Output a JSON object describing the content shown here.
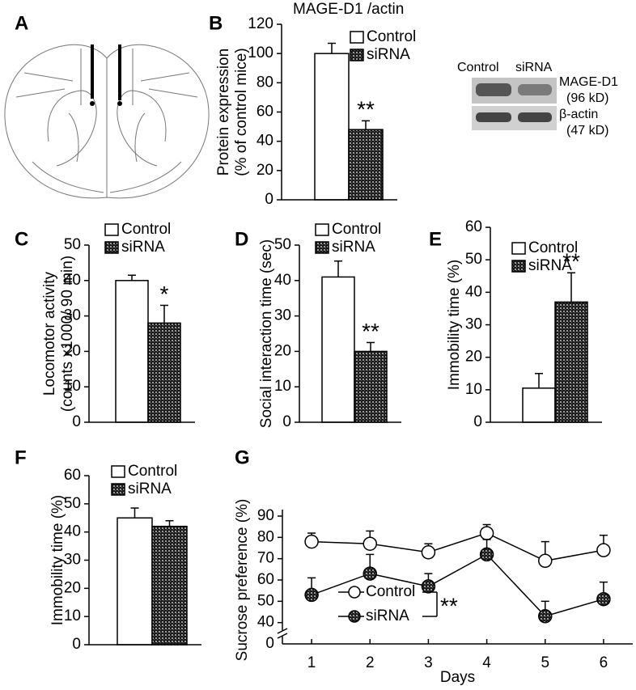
{
  "panel_a": {
    "label": "A"
  },
  "blot": {
    "lanes": [
      "Control",
      "siRNA"
    ],
    "bands": [
      "MAGE-D1",
      "(96 kD)",
      "β-actin",
      "(47 kD)"
    ]
  },
  "chart_data": [
    {
      "type": "bar",
      "panel": "B",
      "title": "MAGE-D1 /actin",
      "ylabel": [
        "Protein expression",
        "(% of control mice)"
      ],
      "series": [
        {
          "name": "Control",
          "color": "#ffffff",
          "values": [
            100
          ],
          "errors": [
            7
          ]
        },
        {
          "name": "siRNA",
          "color": "#1a1a1a",
          "values": [
            48
          ],
          "errors": [
            6
          ]
        }
      ],
      "ylim": [
        0,
        120
      ],
      "yticks": [
        0,
        20,
        40,
        60,
        80,
        100,
        120
      ],
      "annotation": "**"
    },
    {
      "type": "bar",
      "panel": "C",
      "ylabel": [
        "Locomotor activity",
        "(counts x1000/ 90 min)"
      ],
      "series": [
        {
          "name": "Control",
          "color": "#ffffff",
          "values": [
            40
          ],
          "errors": [
            1.5
          ]
        },
        {
          "name": "siRNA",
          "color": "#1a1a1a",
          "values": [
            28
          ],
          "errors": [
            5
          ]
        }
      ],
      "ylim": [
        0,
        50
      ],
      "yticks": [
        0,
        10,
        20,
        30,
        40,
        50
      ],
      "annotation": "*"
    },
    {
      "type": "bar",
      "panel": "D",
      "ylabel": [
        "Social interaction time (sec)"
      ],
      "series": [
        {
          "name": "Control",
          "color": "#ffffff",
          "values": [
            41
          ],
          "errors": [
            4.5
          ]
        },
        {
          "name": "siRNA",
          "color": "#1a1a1a",
          "values": [
            20
          ],
          "errors": [
            2.5
          ]
        }
      ],
      "ylim": [
        0,
        50
      ],
      "yticks": [
        0,
        10,
        20,
        30,
        40,
        50
      ],
      "annotation": "**"
    },
    {
      "type": "bar",
      "panel": "E",
      "ylabel": [
        "Immobility time (%)"
      ],
      "series": [
        {
          "name": "Control",
          "color": "#ffffff",
          "values": [
            10.5
          ],
          "errors": [
            4.5
          ]
        },
        {
          "name": "siRNA",
          "color": "#1a1a1a",
          "values": [
            37
          ],
          "errors": [
            9
          ]
        }
      ],
      "ylim": [
        0,
        60
      ],
      "yticks": [
        0,
        10,
        20,
        30,
        40,
        50,
        60
      ],
      "annotation": "**"
    },
    {
      "type": "bar",
      "panel": "F",
      "ylabel": [
        "Immobility time (%)"
      ],
      "series": [
        {
          "name": "Control",
          "color": "#ffffff",
          "values": [
            45
          ],
          "errors": [
            3.5
          ]
        },
        {
          "name": "siRNA",
          "color": "#1a1a1a",
          "values": [
            42
          ],
          "errors": [
            2
          ]
        }
      ],
      "ylim": [
        0,
        60
      ],
      "yticks": [
        0,
        10,
        20,
        30,
        40,
        50,
        60
      ]
    },
    {
      "type": "line",
      "panel": "G",
      "ylabel": [
        "Sucrose preference (%)"
      ],
      "xlabel": "Days",
      "x": [
        1,
        2,
        3,
        4,
        5,
        6
      ],
      "series": [
        {
          "name": "Control",
          "color": "#ffffff",
          "values": [
            78,
            77,
            73,
            82,
            69,
            74
          ],
          "errors": [
            4,
            6,
            4,
            4,
            9,
            7
          ]
        },
        {
          "name": "siRNA",
          "color": "#1a1a1a",
          "values": [
            53,
            63,
            57,
            72,
            43,
            51
          ],
          "errors": [
            8,
            9,
            6,
            7,
            7,
            8
          ]
        }
      ],
      "xlim": [
        0.5,
        6.5
      ],
      "xticks": [
        1,
        2,
        3,
        4,
        5,
        6
      ],
      "ylim": [
        30,
        90
      ],
      "yticks": [
        40,
        50,
        60,
        70,
        80,
        90
      ],
      "ybreak_label": "0",
      "annotation": "**"
    }
  ]
}
